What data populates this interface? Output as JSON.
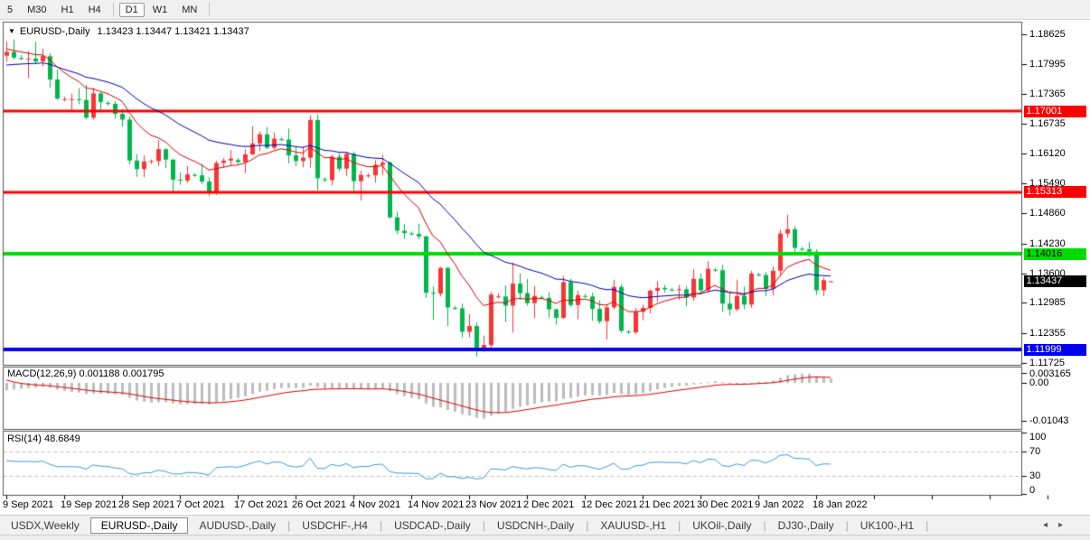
{
  "toolbar": {
    "buttons": [
      "5",
      "M30",
      "H1",
      "H4",
      "D1",
      "W1",
      "MN"
    ],
    "active": "D1",
    "separators_after": [
      "H4",
      "MN"
    ]
  },
  "chart": {
    "title": {
      "dropdown_icon": "▼",
      "symbol": "EURUSD-,Daily",
      "ohlc": "1.13423 1.13447 1.13421 1.13437"
    }
  },
  "chart_data": {
    "type": "candlestick",
    "symbol": "EURUSD-",
    "timeframe": "Daily",
    "up_color": "#f93434",
    "down_color": "#00b64b",
    "candles": [
      [
        1.1817,
        1.1846,
        1.1804,
        1.1825
      ],
      [
        1.1825,
        1.1851,
        1.1809,
        1.1813
      ],
      [
        1.1812,
        1.1818,
        1.1808,
        1.181
      ],
      [
        1.181,
        1.1827,
        1.177,
        1.1811
      ],
      [
        1.1811,
        1.1846,
        1.18,
        1.1805
      ],
      [
        1.1805,
        1.1832,
        1.1795,
        1.1816
      ],
      [
        1.1816,
        1.1822,
        1.175,
        1.1767
      ],
      [
        1.1767,
        1.1788,
        1.1724,
        1.1727
      ],
      [
        1.1726,
        1.1731,
        1.1721,
        1.1726
      ],
      [
        1.1726,
        1.1737,
        1.17,
        1.1726
      ],
      [
        1.1726,
        1.1749,
        1.1715,
        1.1724
      ],
      [
        1.1724,
        1.1756,
        1.1684,
        1.1687
      ],
      [
        1.1687,
        1.175,
        1.1683,
        1.1738
      ],
      [
        1.1738,
        1.174,
        1.1701,
        1.172
      ],
      [
        1.1718,
        1.1722,
        1.1712,
        1.1716
      ],
      [
        1.1716,
        1.1722,
        1.1685,
        1.1695
      ],
      [
        1.1695,
        1.1705,
        1.1668,
        1.1683
      ],
      [
        1.1683,
        1.169,
        1.1589,
        1.1597
      ],
      [
        1.1597,
        1.1611,
        1.1563,
        1.1579
      ],
      [
        1.1579,
        1.1608,
        1.1562,
        1.1595
      ],
      [
        1.1595,
        1.1599,
        1.159,
        1.1596
      ],
      [
        1.1596,
        1.164,
        1.1586,
        1.1621
      ],
      [
        1.1621,
        1.1622,
        1.1581,
        1.1599
      ],
      [
        1.1599,
        1.16,
        1.1529,
        1.1557
      ],
      [
        1.1557,
        1.1572,
        1.1546,
        1.1555
      ],
      [
        1.1555,
        1.1586,
        1.155,
        1.1568
      ],
      [
        1.1567,
        1.1571,
        1.1563,
        1.1566
      ],
      [
        1.1566,
        1.1589,
        1.1548,
        1.1553
      ],
      [
        1.1553,
        1.1562,
        1.1522,
        1.153
      ],
      [
        1.153,
        1.1597,
        1.1525,
        1.1592
      ],
      [
        1.1592,
        1.1602,
        1.1582,
        1.1597
      ],
      [
        1.1597,
        1.1619,
        1.1588,
        1.1601
      ],
      [
        1.1598,
        1.1602,
        1.159,
        1.1594
      ],
      [
        1.1594,
        1.1621,
        1.1571,
        1.161
      ],
      [
        1.161,
        1.1669,
        1.1609,
        1.1633
      ],
      [
        1.1633,
        1.1658,
        1.1617,
        1.1652
      ],
      [
        1.1652,
        1.1667,
        1.1621,
        1.1624
      ],
      [
        1.1624,
        1.1656,
        1.162,
        1.1643
      ],
      [
        1.1642,
        1.1646,
        1.1638,
        1.1641
      ],
      [
        1.1641,
        1.1664,
        1.1591,
        1.1608
      ],
      [
        1.1608,
        1.1626,
        1.1585,
        1.1596
      ],
      [
        1.1596,
        1.1626,
        1.1583,
        1.1603
      ],
      [
        1.1603,
        1.1692,
        1.1582,
        1.1682
      ],
      [
        1.1682,
        1.1694,
        1.1535,
        1.156
      ],
      [
        1.1558,
        1.1562,
        1.1552,
        1.1556
      ],
      [
        1.1556,
        1.1609,
        1.1545,
        1.1605
      ],
      [
        1.1605,
        1.1612,
        1.1574,
        1.158
      ],
      [
        1.158,
        1.1615,
        1.1565,
        1.1611
      ],
      [
        1.1611,
        1.1616,
        1.1527,
        1.1554
      ],
      [
        1.1554,
        1.1576,
        1.1513,
        1.1567
      ],
      [
        1.1565,
        1.157,
        1.1561,
        1.1566
      ],
      [
        1.1566,
        1.1598,
        1.1551,
        1.1588
      ],
      [
        1.1588,
        1.1609,
        1.1567,
        1.1593
      ],
      [
        1.1593,
        1.1595,
        1.1475,
        1.1478
      ],
      [
        1.1478,
        1.149,
        1.1443,
        1.145
      ],
      [
        1.145,
        1.1464,
        1.1433,
        1.1445
      ],
      [
        1.1444,
        1.1448,
        1.144,
        1.1443
      ],
      [
        1.1443,
        1.1464,
        1.1432,
        1.1438
      ],
      [
        1.1438,
        1.1439,
        1.1309,
        1.132
      ],
      [
        1.132,
        1.1333,
        1.1263,
        1.1318
      ],
      [
        1.1318,
        1.1374,
        1.1312,
        1.1372
      ],
      [
        1.1372,
        1.1374,
        1.125,
        1.1289
      ],
      [
        1.1288,
        1.1292,
        1.1284,
        1.1287
      ],
      [
        1.1287,
        1.1297,
        1.1226,
        1.1238
      ],
      [
        1.1238,
        1.1275,
        1.1226,
        1.125
      ],
      [
        1.125,
        1.1258,
        1.1186,
        1.12
      ],
      [
        1.12,
        1.123,
        1.1196,
        1.121
      ],
      [
        1.121,
        1.1322,
        1.1203,
        1.1316
      ],
      [
        1.1312,
        1.1318,
        1.1308,
        1.1312
      ],
      [
        1.1312,
        1.1335,
        1.1258,
        1.1293
      ],
      [
        1.1293,
        1.1383,
        1.1236,
        1.1339
      ],
      [
        1.1339,
        1.136,
        1.1305,
        1.1319
      ],
      [
        1.1319,
        1.1349,
        1.1293,
        1.1298
      ],
      [
        1.1298,
        1.1334,
        1.1267,
        1.1313
      ],
      [
        1.131,
        1.1314,
        1.1306,
        1.1309
      ],
      [
        1.1309,
        1.1321,
        1.1267,
        1.1285
      ],
      [
        1.1285,
        1.1287,
        1.1253,
        1.1267
      ],
      [
        1.1267,
        1.1355,
        1.1265,
        1.1342
      ],
      [
        1.1342,
        1.1349,
        1.129,
        1.1294
      ],
      [
        1.1294,
        1.1324,
        1.1264,
        1.1315
      ],
      [
        1.1313,
        1.1317,
        1.1309,
        1.1312
      ],
      [
        1.1312,
        1.132,
        1.1261,
        1.1286
      ],
      [
        1.1286,
        1.1304,
        1.1255,
        1.126
      ],
      [
        1.126,
        1.1296,
        1.1222,
        1.1289
      ],
      [
        1.1289,
        1.1347,
        1.1285,
        1.1332
      ],
      [
        1.1332,
        1.1338,
        1.1236,
        1.124
      ],
      [
        1.1238,
        1.1242,
        1.1234,
        1.1237
      ],
      [
        1.1237,
        1.1288,
        1.1233,
        1.128
      ],
      [
        1.128,
        1.1295,
        1.1262,
        1.1288
      ],
      [
        1.1288,
        1.1327,
        1.1276,
        1.1324
      ],
      [
        1.1324,
        1.1344,
        1.1301,
        1.133
      ],
      [
        1.133,
        1.1336,
        1.132,
        1.1327
      ],
      [
        1.1326,
        1.133,
        1.1323,
        1.1325
      ],
      [
        1.1325,
        1.1336,
        1.1305,
        1.1327
      ],
      [
        1.1327,
        1.1334,
        1.1292,
        1.131
      ],
      [
        1.131,
        1.1369,
        1.1303,
        1.1349
      ],
      [
        1.1349,
        1.136,
        1.1316,
        1.1325
      ],
      [
        1.1325,
        1.1386,
        1.1321,
        1.137
      ],
      [
        1.1368,
        1.1372,
        1.1364,
        1.1367
      ],
      [
        1.1367,
        1.1379,
        1.1279,
        1.1297
      ],
      [
        1.1297,
        1.1323,
        1.1272,
        1.1285
      ],
      [
        1.1285,
        1.1347,
        1.1281,
        1.1313
      ],
      [
        1.1313,
        1.1333,
        1.1285,
        1.1295
      ],
      [
        1.1295,
        1.1366,
        1.1288,
        1.136
      ],
      [
        1.1358,
        1.1362,
        1.1354,
        1.1357
      ],
      [
        1.1357,
        1.1363,
        1.1313,
        1.1328
      ],
      [
        1.1328,
        1.1375,
        1.1314,
        1.1366
      ],
      [
        1.1366,
        1.1452,
        1.1355,
        1.1444
      ],
      [
        1.1444,
        1.1483,
        1.1435,
        1.1453
      ],
      [
        1.1453,
        1.146,
        1.1399,
        1.1414
      ],
      [
        1.1412,
        1.1416,
        1.1408,
        1.1411
      ],
      [
        1.1411,
        1.1426,
        1.1395,
        1.1406
      ],
      [
        1.1406,
        1.1411,
        1.1315,
        1.1325
      ],
      [
        1.1325,
        1.1352,
        1.1313,
        1.1346
      ],
      [
        1.13423,
        1.13447,
        1.13421,
        1.13437
      ]
    ],
    "price_axis_ticks": [
      "1.18625",
      "1.17995",
      "1.17365",
      "1.16735",
      "1.16120",
      "1.15490",
      "1.14860",
      "1.14230",
      "1.13600",
      "1.12985",
      "1.12355",
      "1.11725"
    ],
    "price_chips": [
      {
        "text": "1.17001",
        "price": 1.17001,
        "bg": "#ff0000",
        "fg": "#ffffff"
      },
      {
        "text": "1.15313",
        "price": 1.15313,
        "bg": "#ff0000",
        "fg": "#ffffff"
      },
      {
        "text": "1.14016",
        "price": 1.14016,
        "bg": "#00dc00",
        "fg": "#000000"
      },
      {
        "text": "1.13437",
        "price": 1.13437,
        "bg": "#000000",
        "fg": "#ffffff"
      },
      {
        "text": "1.11999",
        "price": 1.11999,
        "bg": "#0000ee",
        "fg": "#ffffff"
      }
    ],
    "hlines": [
      {
        "price": 1.17001,
        "color": "#ff0000",
        "width": 3
      },
      {
        "price": 1.15313,
        "color": "#ff0000",
        "width": 3
      },
      {
        "price": 1.14016,
        "color": "#00dc00",
        "width": 4
      },
      {
        "price": 1.11999,
        "color": "#0000ee",
        "width": 4
      }
    ],
    "moving_averages": [
      {
        "name": "slow-ma",
        "color": "#0000c0",
        "period": 25,
        "seed": 1.1795
      },
      {
        "name": "fast-ma",
        "color": "#dd0000",
        "period": 10,
        "seed": 1.1833
      }
    ],
    "date_labels": [
      {
        "bar": 0,
        "text": "9 Sep 2021"
      },
      {
        "bar": 8,
        "text": "19 Sep 2021"
      },
      {
        "bar": 16,
        "text": "28 Sep 2021"
      },
      {
        "bar": 24,
        "text": "7 Oct 2021"
      },
      {
        "bar": 32,
        "text": "17 Oct 2021"
      },
      {
        "bar": 40,
        "text": "26 Oct 2021"
      },
      {
        "bar": 48,
        "text": "4 Nov 2021"
      },
      {
        "bar": 56,
        "text": "14 Nov 2021"
      },
      {
        "bar": 64,
        "text": "23 Nov 2021"
      },
      {
        "bar": 72,
        "text": "2 Dec 2021"
      },
      {
        "bar": 80,
        "text": "12 Dec 2021"
      },
      {
        "bar": 88,
        "text": "21 Dec 2021"
      },
      {
        "bar": 96,
        "text": "30 Dec 2021"
      },
      {
        "bar": 104,
        "text": "9 Jan 2022"
      },
      {
        "bar": 112,
        "text": "18 Jan 2022"
      }
    ],
    "indicators": {
      "macd": {
        "label": "MACD(12,26,9) 0.001188 0.001795",
        "params": [
          12,
          26,
          9
        ],
        "axis_labels": [
          "0.003165",
          "0.00",
          "-0.01043"
        ],
        "axis_values": [
          0.003165,
          0.0,
          -0.01043
        ],
        "histogram_color": "#bdbdbd",
        "signal_color": "#e60000",
        "fast_seed": 1.1795,
        "slow_seed": 1.182,
        "signal_seed": 0.0015
      },
      "rsi": {
        "label": "RSI(14) 48.6849",
        "period": 14,
        "axis_labels": [
          "100",
          "70",
          "30",
          "0"
        ],
        "axis_values": [
          100,
          70,
          30,
          0
        ],
        "levels": [
          70,
          30
        ],
        "color": "#3d9ae1",
        "seed_gain": 0.0026,
        "seed_loss": 0.0022
      }
    }
  },
  "tabs": {
    "items": [
      "USDX,Weekly",
      "EURUSD-,Daily",
      "AUDUSD-,Daily",
      "USDCHF-,H4",
      "USDCAD-,Daily",
      "USDCNH-,Daily",
      "XAUUSD-,H1",
      "UKOil-,Daily",
      "DJ30-,Daily",
      "UK100-,H1"
    ],
    "active": "EURUSD-,Daily",
    "left_arrow": "◂",
    "right_arrow": "▸"
  }
}
